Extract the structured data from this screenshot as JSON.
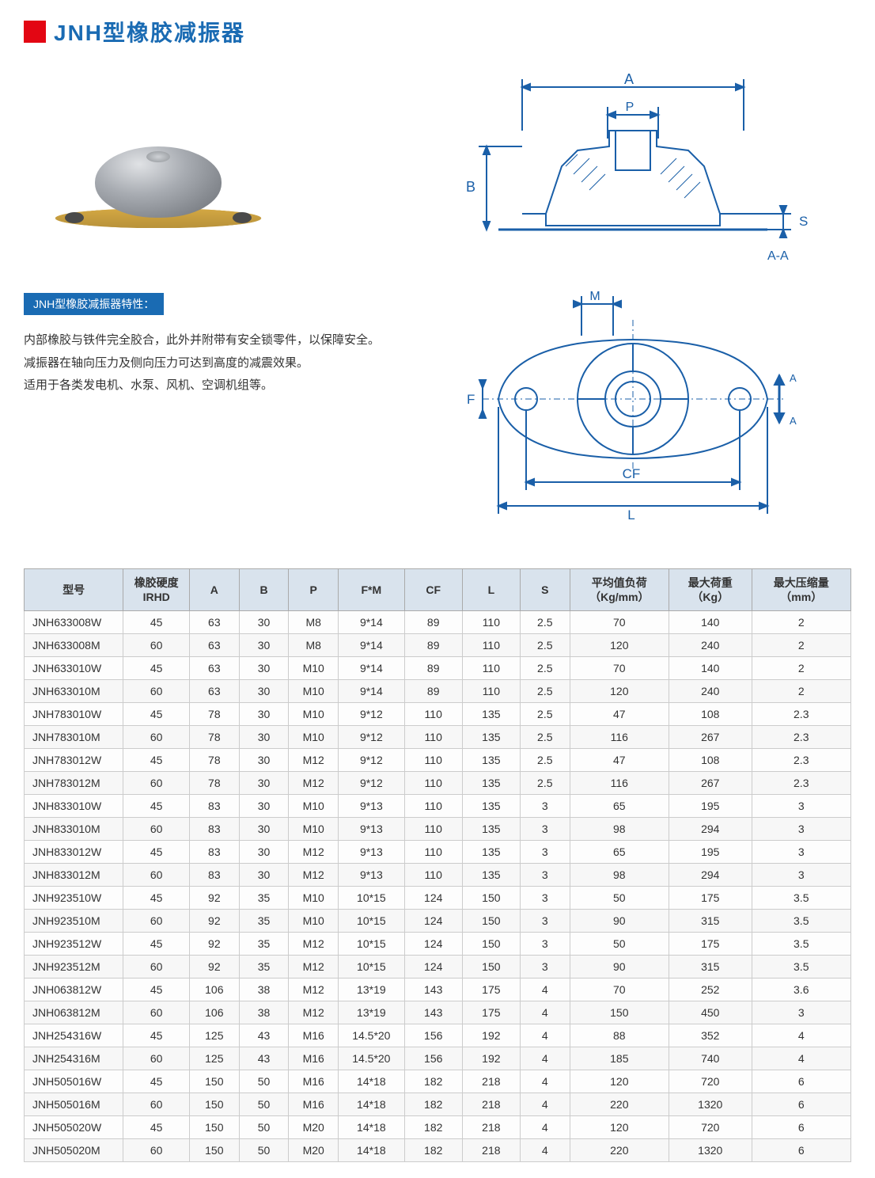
{
  "header": {
    "title": "JNH型橡胶减振器"
  },
  "subheader": "JNH型橡胶减振器特性：",
  "description": {
    "line1": "内部橡胶与铁件完全胶合，此外并附带有安全锁零件，以保障安全。",
    "line2": "减振器在轴向压力及侧向压力可达到高度的减震效果。",
    "line3": "适用于各类发电机、水泵、风机、空调机组等。"
  },
  "diagram_labels": {
    "A": "A",
    "B": "B",
    "P": "P",
    "S": "S",
    "AA": "A-A",
    "M": "M",
    "F": "F",
    "CF": "CF",
    "L": "L"
  },
  "diagram_colors": {
    "line": "#1a5fa8",
    "hatch": "#2a2a2a",
    "fill_light": "#ffffff",
    "bg": "#ffffff"
  },
  "table": {
    "columns": [
      "型号",
      "橡胶硬度\nIRHD",
      "A",
      "B",
      "P",
      "F*M",
      "CF",
      "L",
      "S",
      "平均值负荷\n（Kg/mm）",
      "最大荷重\n（Kg）",
      "最大压缩量\n（mm）"
    ],
    "col_widths_pct": [
      12,
      8,
      6,
      6,
      6,
      8,
      7,
      7,
      6,
      12,
      10,
      12
    ],
    "header_bg": "#d9e3ed",
    "border_color": "#aaaaaa",
    "row_alt_bg": "#f7f7f7",
    "rows": [
      [
        "JNH633008W",
        "45",
        "63",
        "30",
        "M8",
        "9*14",
        "89",
        "110",
        "2.5",
        "70",
        "140",
        "2"
      ],
      [
        "JNH633008M",
        "60",
        "63",
        "30",
        "M8",
        "9*14",
        "89",
        "110",
        "2.5",
        "120",
        "240",
        "2"
      ],
      [
        "JNH633010W",
        "45",
        "63",
        "30",
        "M10",
        "9*14",
        "89",
        "110",
        "2.5",
        "70",
        "140",
        "2"
      ],
      [
        "JNH633010M",
        "60",
        "63",
        "30",
        "M10",
        "9*14",
        "89",
        "110",
        "2.5",
        "120",
        "240",
        "2"
      ],
      [
        "JNH783010W",
        "45",
        "78",
        "30",
        "M10",
        "9*12",
        "110",
        "135",
        "2.5",
        "47",
        "108",
        "2.3"
      ],
      [
        "JNH783010M",
        "60",
        "78",
        "30",
        "M10",
        "9*12",
        "110",
        "135",
        "2.5",
        "116",
        "267",
        "2.3"
      ],
      [
        "JNH783012W",
        "45",
        "78",
        "30",
        "M12",
        "9*12",
        "110",
        "135",
        "2.5",
        "47",
        "108",
        "2.3"
      ],
      [
        "JNH783012M",
        "60",
        "78",
        "30",
        "M12",
        "9*12",
        "110",
        "135",
        "2.5",
        "116",
        "267",
        "2.3"
      ],
      [
        "JNH833010W",
        "45",
        "83",
        "30",
        "M10",
        "9*13",
        "110",
        "135",
        "3",
        "65",
        "195",
        "3"
      ],
      [
        "JNH833010M",
        "60",
        "83",
        "30",
        "M10",
        "9*13",
        "110",
        "135",
        "3",
        "98",
        "294",
        "3"
      ],
      [
        "JNH833012W",
        "45",
        "83",
        "30",
        "M12",
        "9*13",
        "110",
        "135",
        "3",
        "65",
        "195",
        "3"
      ],
      [
        "JNH833012M",
        "60",
        "83",
        "30",
        "M12",
        "9*13",
        "110",
        "135",
        "3",
        "98",
        "294",
        "3"
      ],
      [
        "JNH923510W",
        "45",
        "92",
        "35",
        "M10",
        "10*15",
        "124",
        "150",
        "3",
        "50",
        "175",
        "3.5"
      ],
      [
        "JNH923510M",
        "60",
        "92",
        "35",
        "M10",
        "10*15",
        "124",
        "150",
        "3",
        "90",
        "315",
        "3.5"
      ],
      [
        "JNH923512W",
        "45",
        "92",
        "35",
        "M12",
        "10*15",
        "124",
        "150",
        "3",
        "50",
        "175",
        "3.5"
      ],
      [
        "JNH923512M",
        "60",
        "92",
        "35",
        "M12",
        "10*15",
        "124",
        "150",
        "3",
        "90",
        "315",
        "3.5"
      ],
      [
        "JNH063812W",
        "45",
        "106",
        "38",
        "M12",
        "13*19",
        "143",
        "175",
        "4",
        "70",
        "252",
        "3.6"
      ],
      [
        "JNH063812M",
        "60",
        "106",
        "38",
        "M12",
        "13*19",
        "143",
        "175",
        "4",
        "150",
        "450",
        "3"
      ],
      [
        "JNH254316W",
        "45",
        "125",
        "43",
        "M16",
        "14.5*20",
        "156",
        "192",
        "4",
        "88",
        "352",
        "4"
      ],
      [
        "JNH254316M",
        "60",
        "125",
        "43",
        "M16",
        "14.5*20",
        "156",
        "192",
        "4",
        "185",
        "740",
        "4"
      ],
      [
        "JNH505016W",
        "45",
        "150",
        "50",
        "M16",
        "14*18",
        "182",
        "218",
        "4",
        "120",
        "720",
        "6"
      ],
      [
        "JNH505016M",
        "60",
        "150",
        "50",
        "M16",
        "14*18",
        "182",
        "218",
        "4",
        "220",
        "1320",
        "6"
      ],
      [
        "JNH505020W",
        "45",
        "150",
        "50",
        "M20",
        "14*18",
        "182",
        "218",
        "4",
        "120",
        "720",
        "6"
      ],
      [
        "JNH505020M",
        "60",
        "150",
        "50",
        "M20",
        "14*18",
        "182",
        "218",
        "4",
        "220",
        "1320",
        "6"
      ]
    ]
  }
}
